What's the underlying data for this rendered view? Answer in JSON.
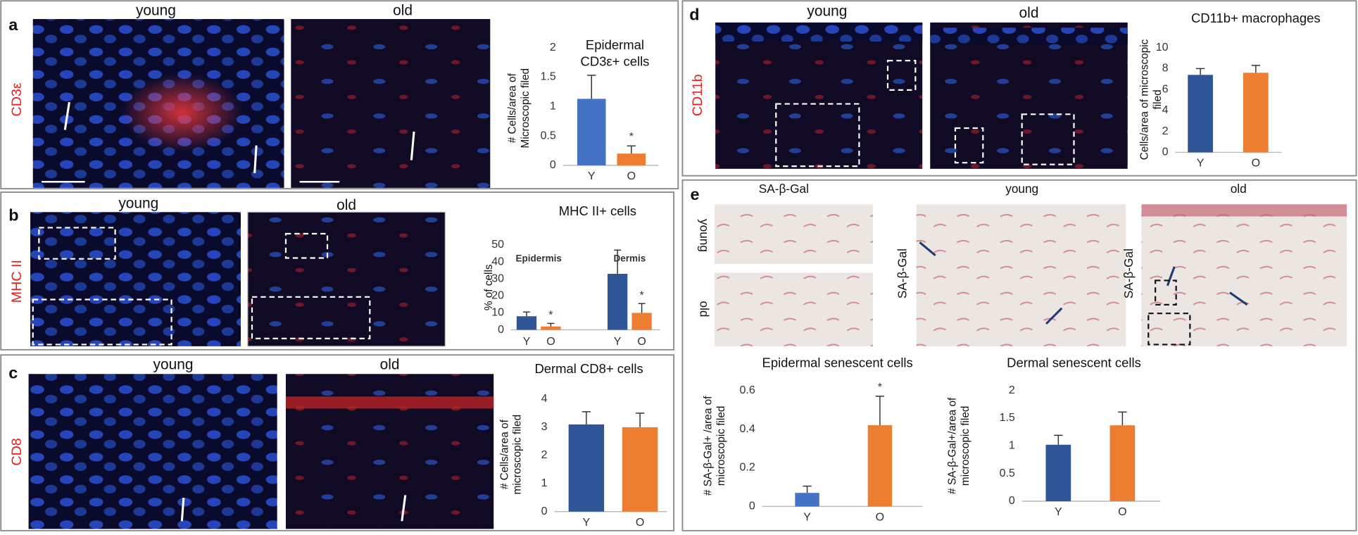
{
  "chart_data": [
    {
      "type": "bar",
      "title": [
        "Epidermal",
        "CD3ε+ cells"
      ],
      "ylabel": [
        "# Cells/area of",
        "Microscopic filed"
      ],
      "categories": [
        "Y",
        "O"
      ],
      "values": [
        1.13,
        0.2
      ],
      "errors": [
        0.4,
        0.13
      ],
      "colors": [
        "#4472c4",
        "#ed7d31"
      ],
      "ylim": [
        0,
        2
      ],
      "yticks": [
        0,
        0.5,
        1,
        1.5,
        2
      ],
      "annotations": [
        {
          "text": "*",
          "category": "O"
        }
      ]
    },
    {
      "type": "grouped-bar",
      "title": [
        "MHC II+ cells"
      ],
      "ylabel": [
        "% of cells"
      ],
      "categories": [
        "Epidermis",
        "Dermis"
      ],
      "series": [
        {
          "name": "Y",
          "color": "#2f5597",
          "values": [
            8,
            33
          ],
          "errors": [
            2.5,
            14
          ]
        },
        {
          "name": "O",
          "color": "#ed7d31",
          "values": [
            2,
            10
          ],
          "errors": [
            1.8,
            5.5
          ]
        }
      ],
      "ylim": [
        0,
        50
      ],
      "yticks": [
        0,
        10,
        20,
        30,
        40,
        50
      ],
      "annotations": [
        {
          "text": "*",
          "series": "O",
          "category": "Epidermis"
        },
        {
          "text": "*",
          "series": "O",
          "category": "Dermis"
        }
      ]
    },
    {
      "type": "bar",
      "title": [
        "Dermal CD8+ cells"
      ],
      "ylabel": [
        "# Cells/area of",
        "microscopic filed"
      ],
      "categories": [
        "Y",
        "O"
      ],
      "values": [
        3.1,
        3.0
      ],
      "errors": [
        0.45,
        0.5
      ],
      "colors": [
        "#2f5597",
        "#ed7d31"
      ],
      "ylim": [
        0,
        4
      ],
      "yticks": [
        0,
        1,
        2,
        3,
        4
      ]
    },
    {
      "type": "bar",
      "title": [
        "CD11b+ macrophages"
      ],
      "ylabel": [
        "Cells/area of microscopic",
        "filed"
      ],
      "categories": [
        "Y",
        "O"
      ],
      "values": [
        7.4,
        7.6
      ],
      "errors": [
        0.6,
        0.7
      ],
      "colors": [
        "#2f5597",
        "#ed7d31"
      ],
      "ylim": [
        0,
        10
      ],
      "yticks": [
        0,
        2,
        4,
        6,
        8,
        10
      ]
    },
    {
      "type": "bar",
      "title": [
        "Epidermal senescent cells"
      ],
      "ylabel": [
        "# SA-β-Gal+ /area of",
        "microscopic filed"
      ],
      "categories": [
        "Y",
        "O"
      ],
      "values": [
        0.07,
        0.42
      ],
      "errors": [
        0.035,
        0.15
      ],
      "colors": [
        "#4472c4",
        "#ed7d31"
      ],
      "ylim": [
        0,
        0.6
      ],
      "yticks": [
        0,
        0.2,
        0.4,
        0.6
      ],
      "annotations": [
        {
          "text": "*",
          "category": "O"
        }
      ]
    },
    {
      "type": "bar",
      "title": [
        "Dermal senescent cells"
      ],
      "ylabel": [
        "# SA-β-Gal+/area of",
        "microscopic filed"
      ],
      "categories": [
        "Y",
        "O"
      ],
      "values": [
        1.02,
        1.37
      ],
      "errors": [
        0.17,
        0.24
      ],
      "colors": [
        "#2f5597",
        "#ed7d31"
      ],
      "ylim": [
        0,
        2
      ],
      "yticks": [
        0,
        0.5,
        1,
        1.5,
        2
      ]
    }
  ],
  "panels": [
    {
      "letter": "a",
      "stain": "CD3ε",
      "images": [
        "young",
        "old"
      ]
    },
    {
      "letter": "b",
      "stain": "MHC II",
      "images": [
        "young",
        "old"
      ]
    },
    {
      "letter": "c",
      "stain": "CD8",
      "images": [
        "young",
        "old"
      ]
    },
    {
      "letter": "d",
      "stain": "CD11b",
      "images": [
        "young",
        "old"
      ]
    },
    {
      "letter": "e",
      "images": [
        "SA-β-Gal",
        "young",
        "old"
      ],
      "row_labels": [
        "young",
        "old"
      ],
      "stains": [
        "SA-β-Gal",
        "SA-β-Gal"
      ]
    }
  ]
}
